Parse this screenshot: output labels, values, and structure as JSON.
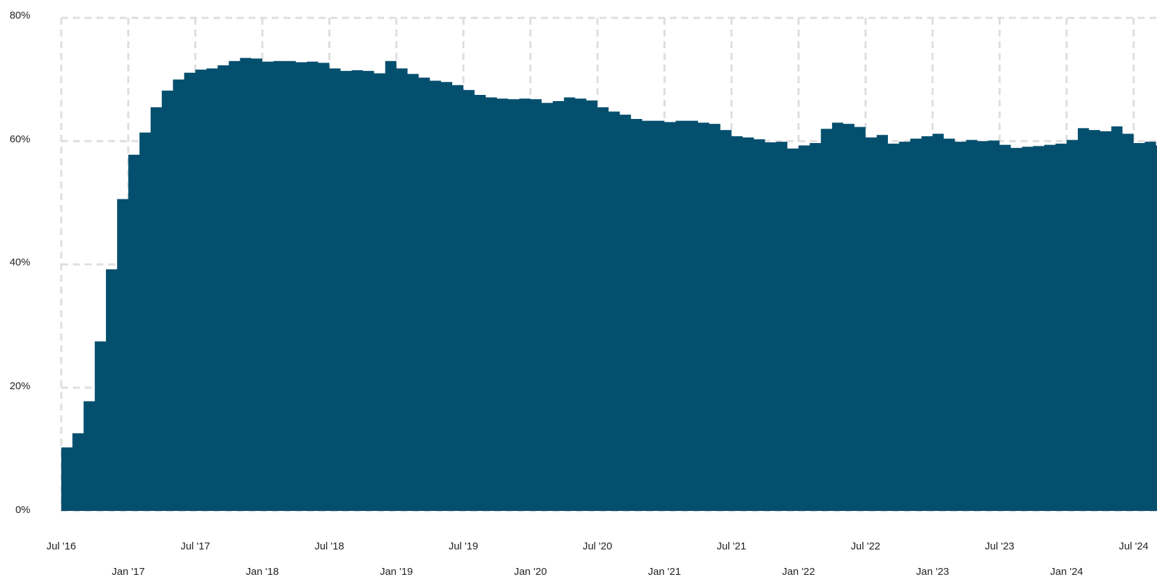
{
  "chart_data": {
    "type": "area",
    "title": "",
    "xlabel": "",
    "ylabel": "",
    "ylim": [
      0,
      80
    ],
    "y_ticks": [
      "0%",
      "20%",
      "40%",
      "60%",
      "80%"
    ],
    "y_tick_values": [
      0,
      20,
      40,
      60,
      80
    ],
    "x_ticks_upper": [
      "Jul '16",
      "Jul '17",
      "Jul '18",
      "Jul '19",
      "Jul '20",
      "Jul '21",
      "Jul '22",
      "Jul '23",
      "Jul '24"
    ],
    "x_ticks_lower": [
      "Jan '17",
      "Jan '18",
      "Jan '19",
      "Jan '20",
      "Jan '21",
      "Jan '22",
      "Jan '23",
      "Jan '24"
    ],
    "grid": true,
    "color": "#054f6e",
    "series": [
      {
        "x_start": "2016-07",
        "x_end": "2024-09",
        "step": "month",
        "values": [
          10.3,
          12.6,
          17.8,
          27.5,
          39.2,
          50.6,
          57.8,
          61.4,
          65.5,
          68.2,
          70.0,
          71.1,
          71.6,
          71.8,
          72.3,
          73.0,
          73.5,
          73.4,
          72.9,
          73.0,
          73.0,
          72.8,
          72.9,
          72.7,
          71.8,
          71.4,
          71.5,
          71.4,
          71.0,
          73.0,
          71.8,
          70.9,
          70.3,
          69.8,
          69.6,
          69.1,
          68.3,
          67.5,
          67.1,
          66.9,
          66.8,
          66.9,
          66.8,
          66.2,
          66.5,
          67.1,
          66.9,
          66.6,
          65.5,
          64.8,
          64.3,
          63.6,
          63.3,
          63.3,
          63.1,
          63.3,
          63.3,
          63.0,
          62.8,
          61.8,
          60.8,
          60.6,
          60.3,
          59.8,
          59.9,
          58.8,
          59.3,
          59.7,
          62.0,
          63.0,
          62.8,
          62.3,
          60.6,
          61.0,
          59.6,
          59.9,
          60.4,
          60.8,
          61.2,
          60.4,
          59.9,
          60.2,
          60.0,
          60.1,
          59.4,
          58.9,
          59.1,
          59.2,
          59.4,
          59.6,
          60.2,
          62.1,
          61.8,
          61.6,
          62.4,
          61.2,
          59.7,
          59.9,
          59.3
        ]
      }
    ]
  }
}
